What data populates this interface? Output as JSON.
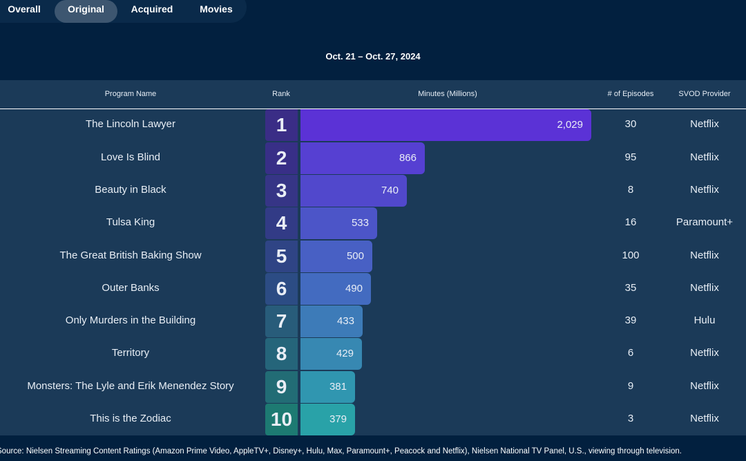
{
  "tabs": [
    {
      "label": "Overall"
    },
    {
      "label": "Original"
    },
    {
      "label": "Acquired"
    },
    {
      "label": "Movies"
    }
  ],
  "active_tab": "Original",
  "date_range": "Oct. 21 – Oct. 27, 2024",
  "columns": {
    "program": "Program Name",
    "rank": "Rank",
    "minutes": "Minutes (Millions)",
    "episodes": "# of Episodes",
    "provider": "SVOD Provider"
  },
  "chart_data": {
    "type": "bar",
    "orientation": "horizontal",
    "title": "",
    "categories": [
      "The Lincoln Lawyer",
      "Love Is Blind",
      "Beauty in Black",
      "Tulsa King",
      "The Great British Baking Show",
      "Outer Banks",
      "Only Murders in the Building",
      "Territory",
      "Monsters: The Lyle and Erik Menendez Story",
      "This is the Zodiac"
    ],
    "ranks": [
      "1",
      "2",
      "3",
      "4",
      "5",
      "6",
      "7",
      "8",
      "9",
      "10"
    ],
    "values": [
      2029,
      866,
      740,
      533,
      500,
      490,
      433,
      429,
      381,
      379
    ],
    "value_labels": [
      "2,029",
      "866",
      "740",
      "533",
      "500",
      "490",
      "433",
      "429",
      "381",
      "379"
    ],
    "episodes": [
      "30",
      "95",
      "8",
      "16",
      "100",
      "35",
      "39",
      "6",
      "9",
      "3"
    ],
    "providers": [
      "Netflix",
      "Netflix",
      "Netflix",
      "Paramount+",
      "Netflix",
      "Netflix",
      "Hulu",
      "Netflix",
      "Netflix",
      "Netflix"
    ],
    "rank_colors": [
      "#3a2d86",
      "#382f87",
      "#363586",
      "#323b86",
      "#2f4485",
      "#2c4c84",
      "#285c7a",
      "#25657a",
      "#226c75",
      "#1d7a72"
    ],
    "bar_colors": [
      "#5b32d6",
      "#5640d2",
      "#5148cc",
      "#4c55c8",
      "#4860c4",
      "#436bc0",
      "#3d7bb8",
      "#3788b2",
      "#3096b0",
      "#29a2a8"
    ]
  },
  "footer": "Source: Nielsen Streaming Content Ratings (Amazon Prime Video, AppleTV+, Disney+, Hulu, Max, Paramount+, Peacock and Netflix), Nielsen National TV Panel, U.S., viewing through television."
}
